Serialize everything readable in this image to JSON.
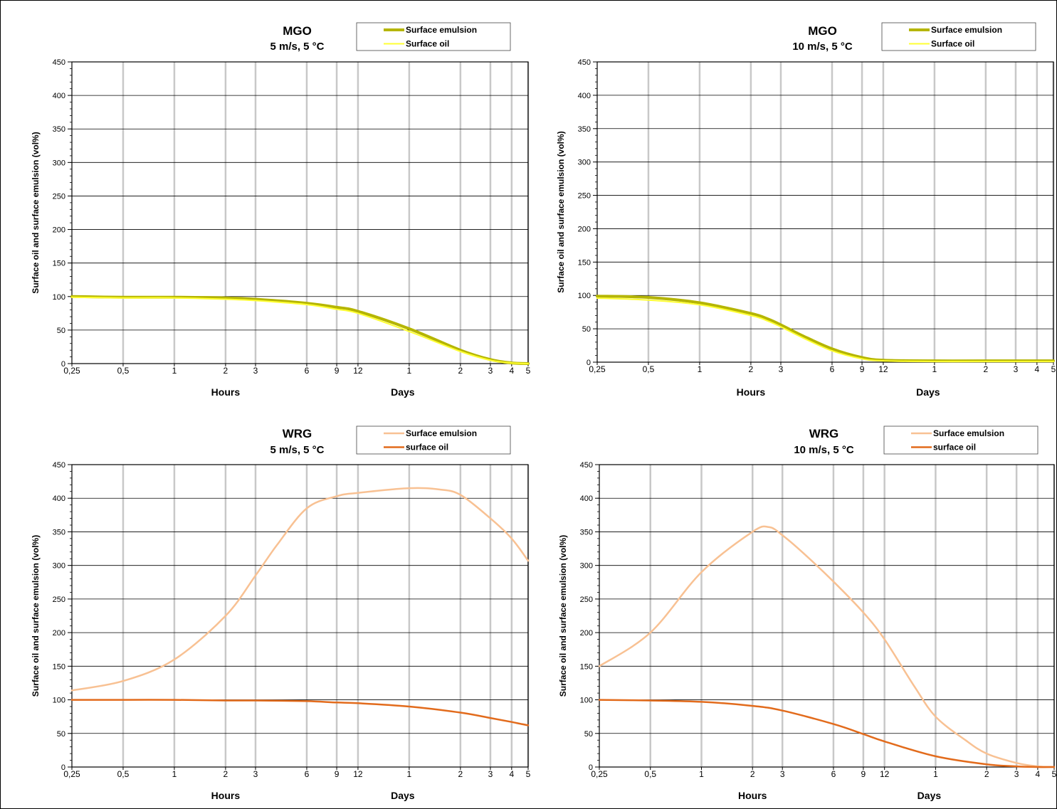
{
  "colors": {
    "mgo_emulsion": "#b5b500",
    "mgo_oil": "#ffff33",
    "wrg_emulsion": "#f8c193",
    "wrg_oil": "#e26b1c",
    "grid_vertical": "#c8c8c8",
    "grid_horizontal": "#000000"
  },
  "chart_data": [
    {
      "type": "line",
      "title": "MGO",
      "subtitle": "5 m/s, 5 °C",
      "ylabel": "Surface oil and surface emulsion (vol%)",
      "xlabel_hours": "Hours",
      "xlabel_days": "Days",
      "x_scale": "log",
      "x_ticks": [
        {
          "hours": 0.25,
          "label": "0,25"
        },
        {
          "hours": 0.5,
          "label": "0,5"
        },
        {
          "hours": 1,
          "label": "1"
        },
        {
          "hours": 2,
          "label": "2"
        },
        {
          "hours": 3,
          "label": "3"
        },
        {
          "hours": 6,
          "label": "6"
        },
        {
          "hours": 9,
          "label": "9"
        },
        {
          "hours": 12,
          "label": "12"
        },
        {
          "hours": 24,
          "label": "1"
        },
        {
          "hours": 48,
          "label": "2"
        },
        {
          "hours": 72,
          "label": "3"
        },
        {
          "hours": 96,
          "label": "4"
        },
        {
          "hours": 120,
          "label": "5"
        }
      ],
      "ylim": [
        0,
        450
      ],
      "yticks": [
        0,
        50,
        100,
        150,
        200,
        250,
        300,
        350,
        400,
        450
      ],
      "legend_position": "top-right",
      "series": [
        {
          "name": "Surface emulsion",
          "color": "#b5b500",
          "width": 4,
          "x": [
            0.25,
            0.5,
            1,
            2,
            3,
            6,
            9,
            12,
            24,
            48,
            72,
            96,
            120
          ],
          "y": [
            100,
            99,
            99,
            98,
            96,
            90,
            84,
            78,
            52,
            20,
            6,
            1,
            0
          ]
        },
        {
          "name": "Surface oil",
          "color": "#ffff33",
          "width": 2,
          "x": [
            0.25,
            0.5,
            1,
            2,
            3,
            6,
            9,
            12,
            24,
            48,
            72,
            96,
            120
          ],
          "y": [
            99,
            98,
            98,
            96,
            94,
            88,
            81,
            75,
            48,
            18,
            5,
            1,
            0
          ]
        }
      ]
    },
    {
      "type": "line",
      "title": "MGO",
      "subtitle": "10 m/s, 5 °C",
      "ylabel": "Surface oil and surface emulsion (vol%)",
      "xlabel_hours": "Hours",
      "xlabel_days": "Days",
      "x_scale": "log",
      "x_ticks": [
        {
          "hours": 0.25,
          "label": "0,25"
        },
        {
          "hours": 0.5,
          "label": "0,5"
        },
        {
          "hours": 1,
          "label": "1"
        },
        {
          "hours": 2,
          "label": "2"
        },
        {
          "hours": 3,
          "label": "3"
        },
        {
          "hours": 6,
          "label": "6"
        },
        {
          "hours": 9,
          "label": "9"
        },
        {
          "hours": 12,
          "label": "12"
        },
        {
          "hours": 24,
          "label": "1"
        },
        {
          "hours": 48,
          "label": "2"
        },
        {
          "hours": 72,
          "label": "3"
        },
        {
          "hours": 96,
          "label": "4"
        },
        {
          "hours": 120,
          "label": "5"
        }
      ],
      "ylim": [
        0,
        450
      ],
      "yticks": [
        0,
        50,
        100,
        150,
        200,
        250,
        300,
        350,
        400,
        450
      ],
      "legend_position": "top-right",
      "series": [
        {
          "name": "Surface emulsion",
          "color": "#b5b500",
          "width": 4,
          "x": [
            0.25,
            0.5,
            1,
            2,
            2.5,
            3,
            4,
            6,
            9,
            12,
            24,
            48,
            72,
            96,
            120
          ],
          "y": [
            99,
            97,
            89,
            73,
            65,
            56,
            40,
            20,
            7,
            3,
            2,
            2,
            2,
            2,
            2
          ]
        },
        {
          "name": "Surface oil",
          "color": "#ffff33",
          "width": 2,
          "x": [
            0.25,
            0.5,
            1,
            2,
            2.5,
            3,
            4,
            6,
            9,
            12,
            24,
            48,
            72,
            96,
            120
          ],
          "y": [
            96,
            93,
            86,
            70,
            62,
            53,
            37,
            17,
            5,
            2,
            1,
            1,
            1,
            1,
            1
          ]
        }
      ]
    },
    {
      "type": "line",
      "title": "WRG",
      "subtitle": "5 m/s, 5 °C",
      "ylabel": "Surface oil and surface emulsion (vol%)",
      "xlabel_hours": "Hours",
      "xlabel_days": "Days",
      "x_scale": "log",
      "x_ticks": [
        {
          "hours": 0.25,
          "label": "0,25"
        },
        {
          "hours": 0.5,
          "label": "0,5"
        },
        {
          "hours": 1,
          "label": "1"
        },
        {
          "hours": 2,
          "label": "2"
        },
        {
          "hours": 3,
          "label": "3"
        },
        {
          "hours": 6,
          "label": "6"
        },
        {
          "hours": 9,
          "label": "9"
        },
        {
          "hours": 12,
          "label": "12"
        },
        {
          "hours": 24,
          "label": "1"
        },
        {
          "hours": 48,
          "label": "2"
        },
        {
          "hours": 72,
          "label": "3"
        },
        {
          "hours": 96,
          "label": "4"
        },
        {
          "hours": 120,
          "label": "5"
        }
      ],
      "ylim": [
        0,
        450
      ],
      "yticks": [
        0,
        50,
        100,
        150,
        200,
        250,
        300,
        350,
        400,
        450
      ],
      "legend_position": "top-right",
      "series": [
        {
          "name": "Surface emulsion",
          "color": "#f8c193",
          "width": 2.5,
          "x": [
            0.25,
            0.5,
            1,
            2,
            3,
            4,
            6,
            9,
            12,
            24,
            36,
            48,
            72,
            96,
            120
          ],
          "y": [
            114,
            128,
            160,
            225,
            285,
            330,
            385,
            403,
            408,
            415,
            413,
            405,
            370,
            340,
            307
          ]
        },
        {
          "name": "surface oil",
          "color": "#e26b1c",
          "width": 2.5,
          "x": [
            0.25,
            0.5,
            1,
            2,
            3,
            6,
            9,
            12,
            24,
            48,
            72,
            96,
            120
          ],
          "y": [
            100,
            100,
            100,
            99,
            99,
            98,
            96,
            95,
            90,
            81,
            73,
            67,
            62
          ]
        }
      ]
    },
    {
      "type": "line",
      "title": "WRG",
      "subtitle": "10 m/s, 5 °C",
      "ylabel": "Surface oil and surface emulsion (vol%)",
      "xlabel_hours": "Hours",
      "xlabel_days": "Days",
      "x_scale": "log",
      "x_ticks": [
        {
          "hours": 0.25,
          "label": "0,25"
        },
        {
          "hours": 0.5,
          "label": "0,5"
        },
        {
          "hours": 1,
          "label": "1"
        },
        {
          "hours": 2,
          "label": "2"
        },
        {
          "hours": 3,
          "label": "3"
        },
        {
          "hours": 6,
          "label": "6"
        },
        {
          "hours": 9,
          "label": "9"
        },
        {
          "hours": 12,
          "label": "12"
        },
        {
          "hours": 24,
          "label": "1"
        },
        {
          "hours": 48,
          "label": "2"
        },
        {
          "hours": 72,
          "label": "3"
        },
        {
          "hours": 96,
          "label": "4"
        },
        {
          "hours": 120,
          "label": "5"
        }
      ],
      "ylim": [
        0,
        450
      ],
      "yticks": [
        0,
        50,
        100,
        150,
        200,
        250,
        300,
        350,
        400,
        450
      ],
      "legend_position": "top-right",
      "series": [
        {
          "name": "Surface emulsion",
          "color": "#f8c193",
          "width": 2.5,
          "x": [
            0.25,
            0.5,
            1,
            2,
            2.5,
            3,
            4,
            6,
            9,
            12,
            18,
            24,
            36,
            48,
            72,
            96,
            120
          ],
          "y": [
            150,
            200,
            290,
            350,
            357,
            345,
            318,
            276,
            230,
            190,
            120,
            75,
            40,
            20,
            6,
            1,
            0
          ]
        },
        {
          "name": "surface oil",
          "color": "#e26b1c",
          "width": 2.5,
          "x": [
            0.25,
            0.5,
            1,
            2,
            3,
            6,
            9,
            12,
            24,
            48,
            72,
            96,
            120
          ],
          "y": [
            100,
            99,
            97,
            91,
            84,
            64,
            49,
            38,
            16,
            4,
            1,
            0,
            0
          ]
        }
      ]
    }
  ]
}
